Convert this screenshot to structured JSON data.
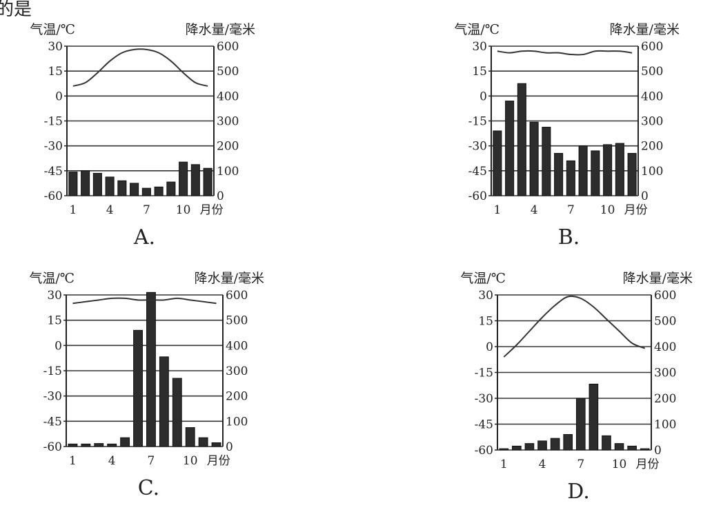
{
  "question_fragment": "的是",
  "chart_data": [
    {
      "type": "bar+line",
      "caption": "A.",
      "left_axis_label": "气温/℃",
      "right_axis_label": "降水量/毫米",
      "x_tick_labels": [
        "1",
        "4",
        "7",
        "10"
      ],
      "x_unit": "月份",
      "temp_ticks": [
        "30",
        "15",
        "0",
        "-15",
        "-30",
        "-45",
        "-60"
      ],
      "precip_ticks": [
        "600",
        "500",
        "400",
        "300",
        "200",
        "100",
        "0"
      ],
      "temp_range": [
        -60,
        30
      ],
      "precip_range": [
        0,
        600
      ],
      "grid": "horizontal",
      "months": [
        1,
        2,
        3,
        4,
        5,
        6,
        7,
        8,
        9,
        10,
        11,
        12
      ],
      "temperature": [
        6,
        8,
        14,
        21,
        26,
        28,
        28,
        26,
        21,
        14,
        8,
        6
      ],
      "precipitation": [
        95,
        100,
        90,
        75,
        60,
        50,
        30,
        35,
        55,
        135,
        125,
        110
      ]
    },
    {
      "type": "bar+line",
      "caption": "B.",
      "left_axis_label": "气温/℃",
      "right_axis_label": "降水量/毫米",
      "x_tick_labels": [
        "1",
        "4",
        "7",
        "10"
      ],
      "x_unit": "月份",
      "temp_ticks": [
        "30",
        "15",
        "0",
        "-15",
        "-30",
        "-45",
        "-60"
      ],
      "precip_ticks": [
        "600",
        "500",
        "400",
        "300",
        "200",
        "100",
        "0"
      ],
      "temp_range": [
        -60,
        30
      ],
      "precip_range": [
        0,
        600
      ],
      "grid": "horizontal",
      "months": [
        1,
        2,
        3,
        4,
        5,
        6,
        7,
        8,
        9,
        10,
        11,
        12
      ],
      "temperature": [
        27,
        26,
        27,
        27,
        26,
        26,
        25,
        25,
        27,
        27,
        27,
        26
      ],
      "precipitation": [
        260,
        380,
        450,
        295,
        275,
        170,
        140,
        200,
        180,
        205,
        210,
        170
      ]
    },
    {
      "type": "bar+line",
      "caption": "C.",
      "left_axis_label": "气温/℃",
      "right_axis_label": "降水量/毫米",
      "x_tick_labels": [
        "1",
        "4",
        "7",
        "10"
      ],
      "x_unit": "月份",
      "temp_ticks": [
        "30",
        "15",
        "0",
        "-15",
        "-30",
        "-45",
        "-60"
      ],
      "precip_ticks": [
        "600",
        "500",
        "400",
        "300",
        "200",
        "100",
        "0"
      ],
      "temp_range": [
        -60,
        30
      ],
      "precip_range": [
        0,
        600
      ],
      "grid": "horizontal",
      "months": [
        1,
        2,
        3,
        4,
        5,
        6,
        7,
        8,
        9,
        10,
        11,
        12
      ],
      "temperature": [
        25,
        26,
        27,
        28,
        28,
        27,
        27,
        27,
        28,
        27,
        26,
        25
      ],
      "precipitation": [
        10,
        10,
        12,
        10,
        35,
        460,
        610,
        355,
        270,
        75,
        35,
        15
      ]
    },
    {
      "type": "bar+line",
      "caption": "D.",
      "left_axis_label": "气温/℃",
      "right_axis_label": "降水量/毫米",
      "x_tick_labels": [
        "1",
        "4",
        "7",
        "10"
      ],
      "x_unit": "月份",
      "temp_ticks": [
        "30",
        "15",
        "0",
        "-15",
        "-30",
        "-45",
        "-60"
      ],
      "precip_ticks": [
        "600",
        "500",
        "400",
        "300",
        "200",
        "100",
        "0"
      ],
      "temp_range": [
        -60,
        30
      ],
      "precip_range": [
        0,
        600
      ],
      "grid": "horizontal",
      "months": [
        1,
        2,
        3,
        4,
        5,
        6,
        7,
        8,
        9,
        10,
        11,
        12
      ],
      "temperature": [
        -6,
        1,
        9,
        17,
        24,
        29,
        28,
        23,
        16,
        9,
        2,
        -1
      ],
      "precipitation": [
        5,
        15,
        25,
        35,
        45,
        60,
        200,
        255,
        55,
        25,
        15,
        5
      ]
    }
  ]
}
